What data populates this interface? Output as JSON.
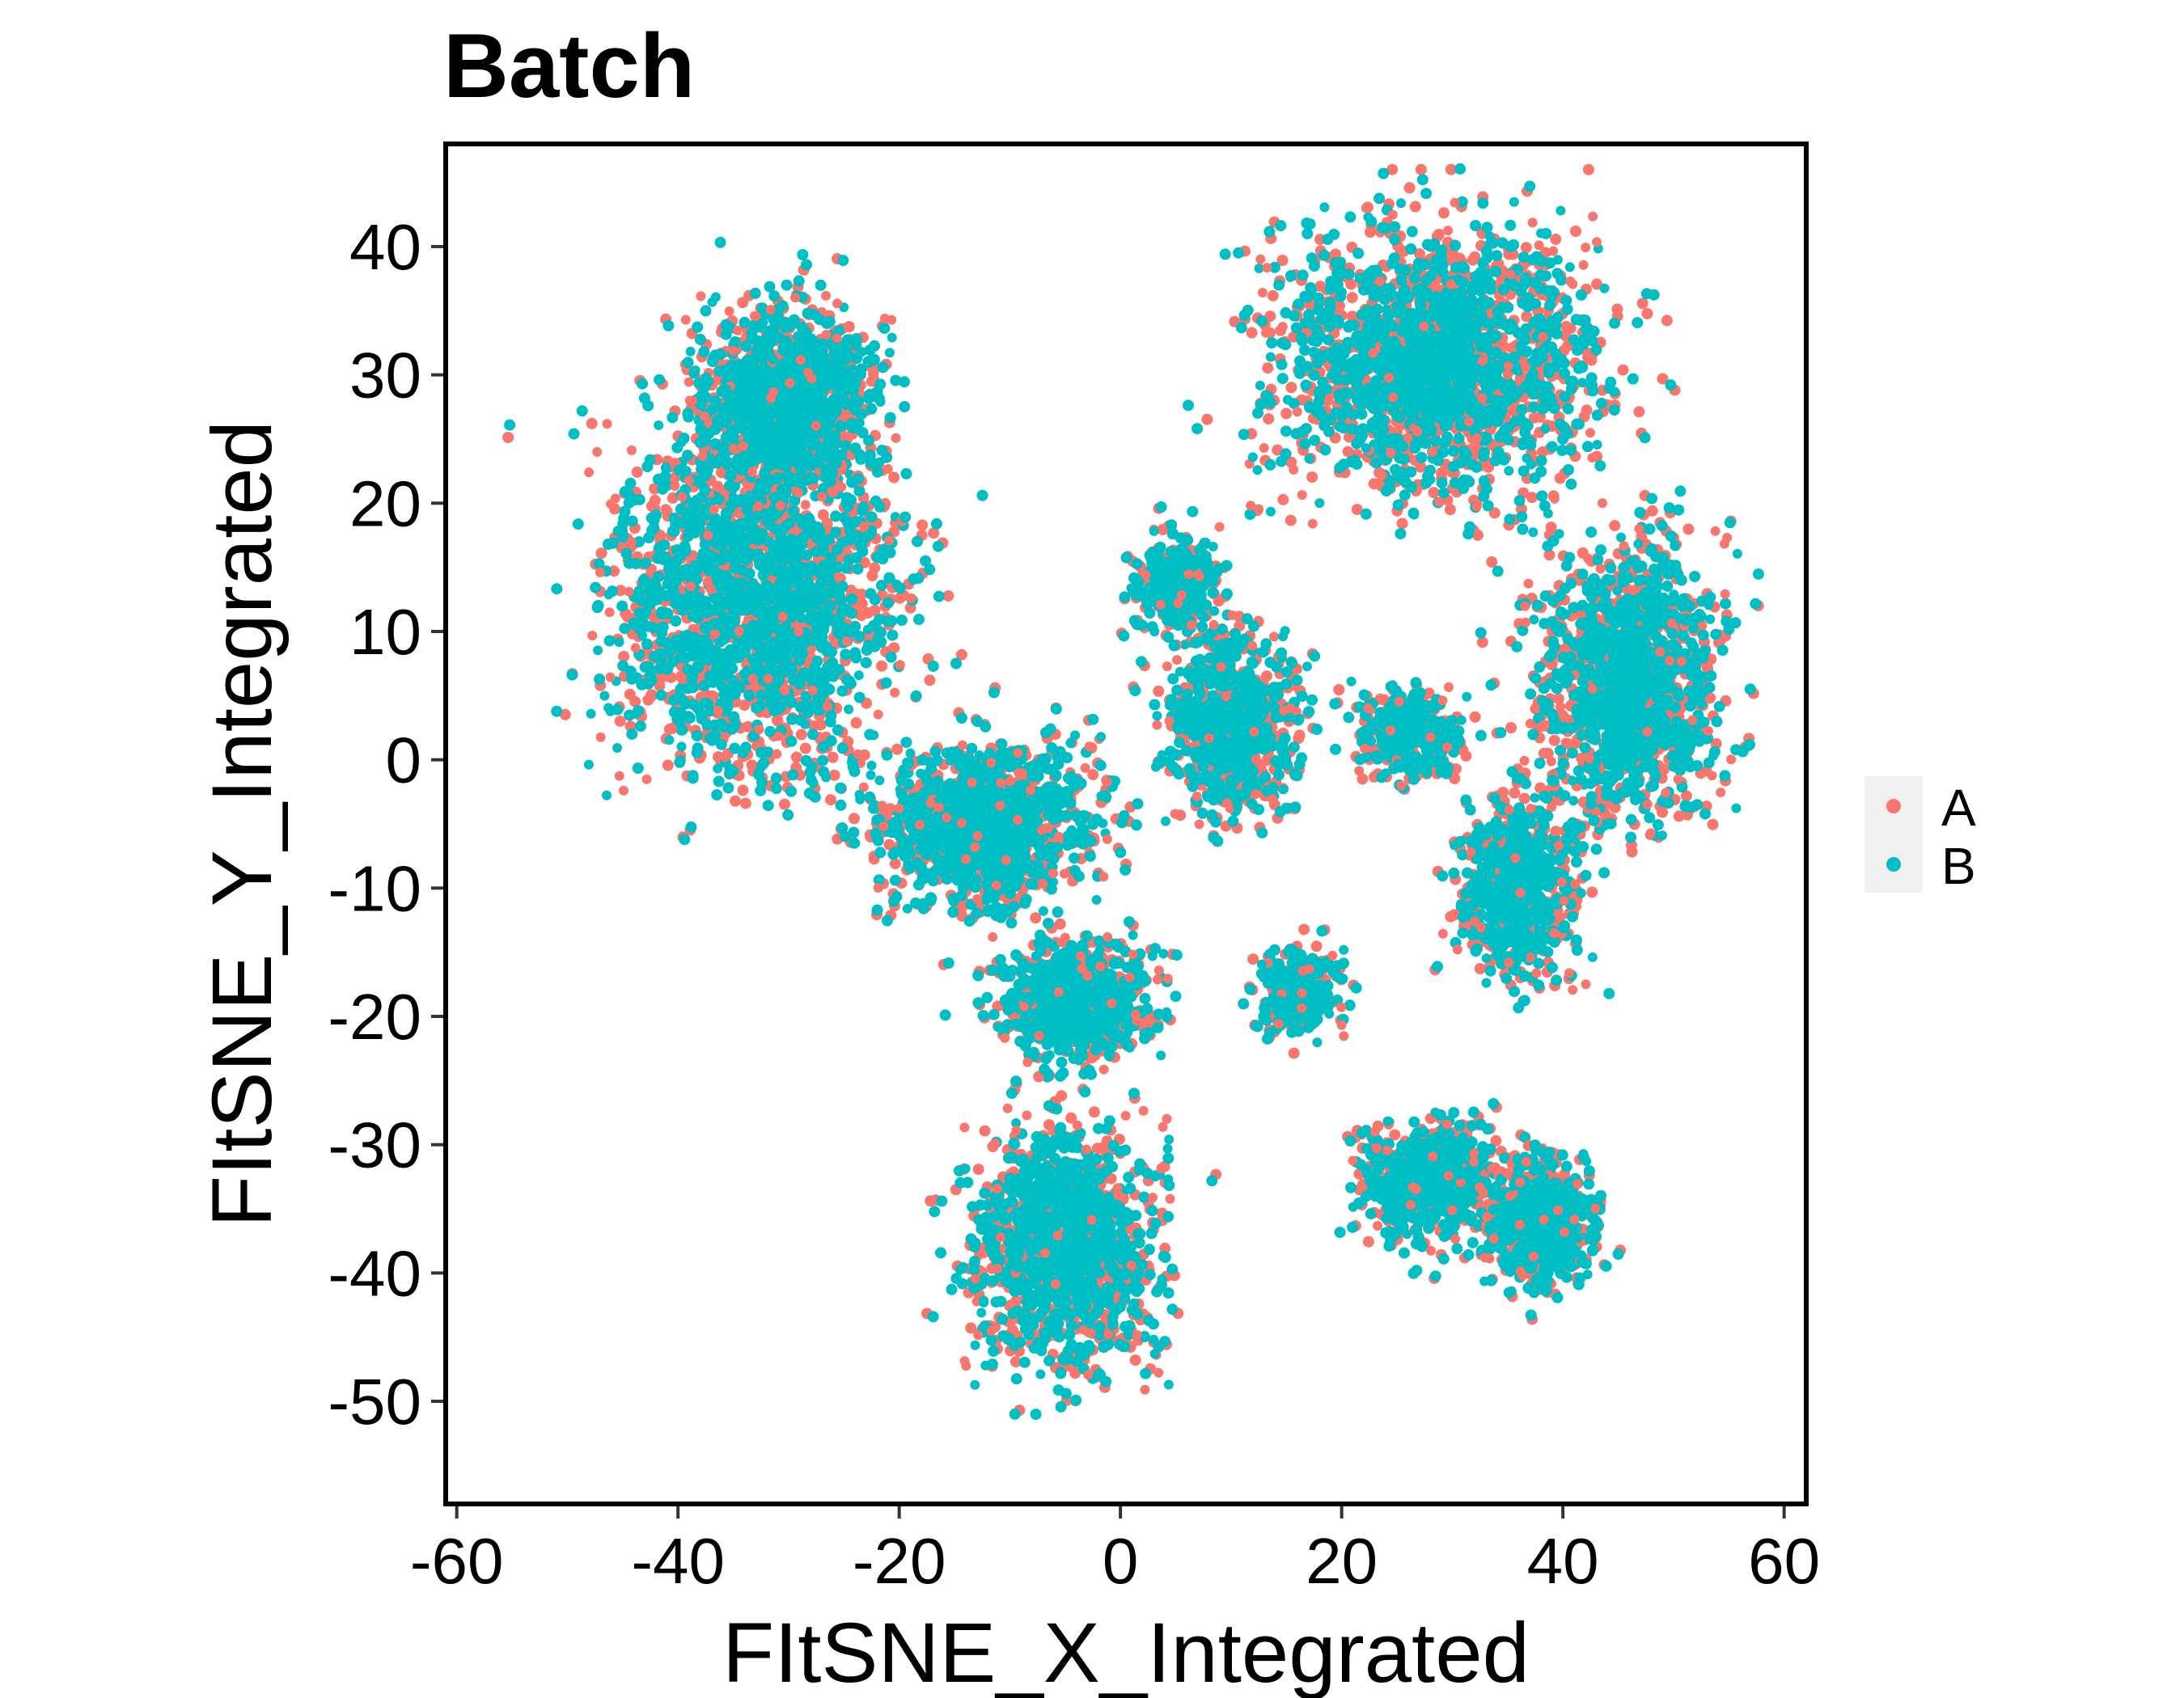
{
  "chart_data": {
    "type": "scatter",
    "title": "Batch",
    "xlabel": "FItSNE_X_Integrated",
    "ylabel": "FItSNE_Y_Integrated",
    "xlim": [
      -61,
      62
    ],
    "ylim": [
      -58,
      48
    ],
    "x_ticks": [
      -60,
      -40,
      -20,
      0,
      20,
      40,
      60
    ],
    "y_ticks": [
      -50,
      -40,
      -30,
      -20,
      -10,
      0,
      10,
      20,
      30,
      40
    ],
    "x_tick_labels": [
      "-60",
      "-40",
      "-20",
      "0",
      "20",
      "40",
      "60"
    ],
    "y_tick_labels": [
      "-50",
      "-40",
      "-30",
      "-20",
      "-10",
      "0",
      "10",
      "20",
      "30",
      "40"
    ],
    "grid": false,
    "legend_position": "right",
    "series": [
      {
        "name": "A",
        "color": "#F8766D"
      },
      {
        "name": "B",
        "color": "#00BFC4"
      }
    ],
    "clusters": [
      {
        "label": "large-left",
        "center": [
          -33,
          12
        ],
        "spread": [
          11,
          11
        ],
        "density": "very-high"
      },
      {
        "label": "left-upper",
        "center": [
          -30,
          28
        ],
        "spread": [
          7,
          6
        ],
        "density": "high"
      },
      {
        "label": "diagonal-arm",
        "center": [
          -12,
          -5
        ],
        "spread": [
          8,
          5
        ],
        "density": "high"
      },
      {
        "label": "center-lower",
        "center": [
          -4,
          -19
        ],
        "spread": [
          6,
          4
        ],
        "density": "medium"
      },
      {
        "label": "bottom",
        "center": [
          -5,
          -38
        ],
        "spread": [
          7,
          8
        ],
        "density": "high"
      },
      {
        "label": "top-right",
        "center": [
          28,
          31
        ],
        "spread": [
          12,
          9
        ],
        "density": "very-high"
      },
      {
        "label": "right-mid",
        "center": [
          46,
          6
        ],
        "spread": [
          7,
          9
        ],
        "density": "high"
      },
      {
        "label": "right-lower",
        "center": [
          36,
          -10
        ],
        "spread": [
          5,
          6
        ],
        "density": "medium"
      },
      {
        "label": "center-small",
        "center": [
          10,
          3
        ],
        "spread": [
          5,
          6
        ],
        "density": "medium"
      },
      {
        "label": "center-mid",
        "center": [
          26,
          2
        ],
        "spread": [
          4,
          3
        ],
        "density": "low"
      },
      {
        "label": "center-tiny",
        "center": [
          16,
          -18
        ],
        "spread": [
          3,
          3
        ],
        "density": "low"
      },
      {
        "label": "bottom-right-a",
        "center": [
          28,
          -33
        ],
        "spread": [
          5,
          4
        ],
        "density": "medium"
      },
      {
        "label": "bottom-right-b",
        "center": [
          38,
          -36
        ],
        "spread": [
          4,
          4
        ],
        "density": "medium"
      },
      {
        "label": "upper-center",
        "center": [
          5,
          14
        ],
        "spread": [
          3,
          3
        ],
        "density": "low"
      }
    ]
  }
}
